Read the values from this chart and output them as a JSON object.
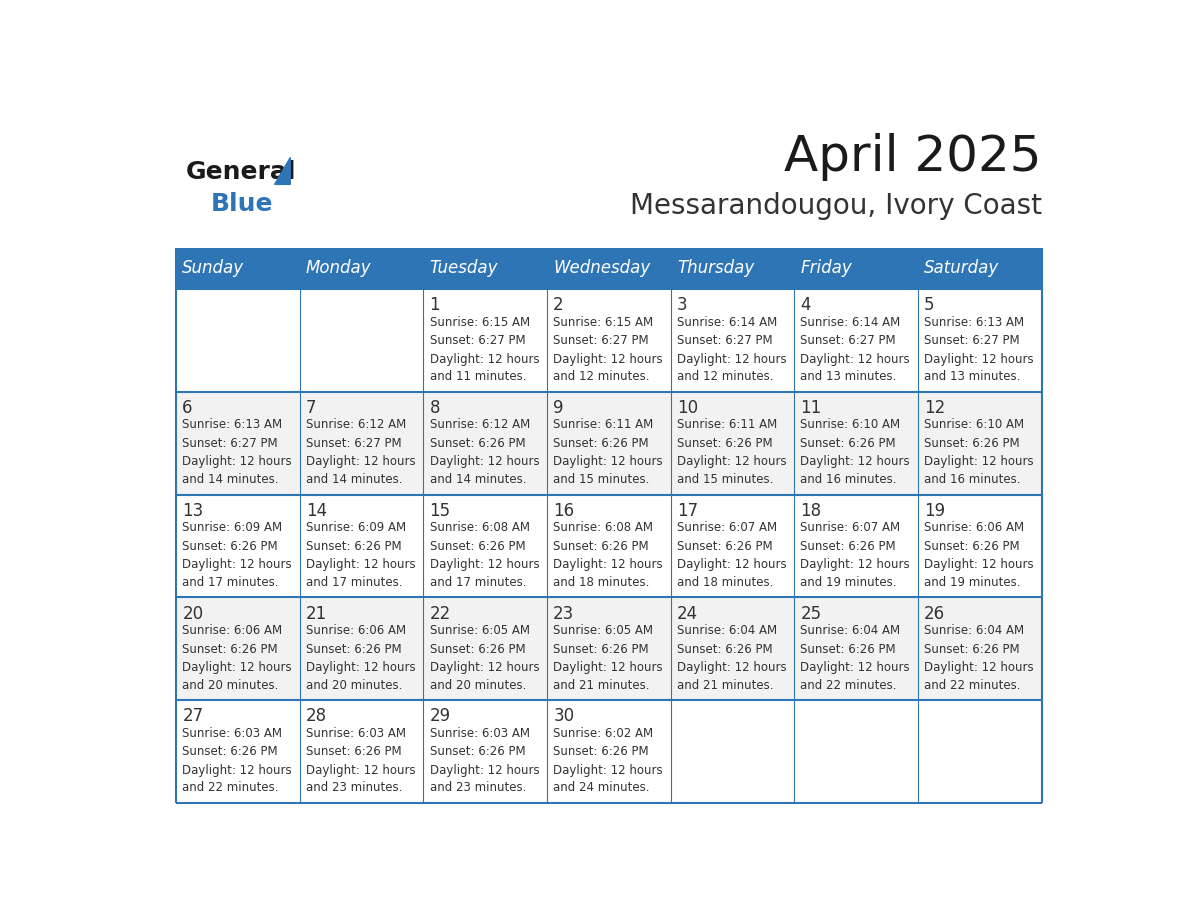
{
  "title": "April 2025",
  "subtitle": "Messarandougou, Ivory Coast",
  "header_bg_color": "#2E75B6",
  "header_text_color": "#FFFFFF",
  "row_bg_color_light": "#FFFFFF",
  "row_bg_color_alt": "#F2F2F2",
  "border_color": "#2E75B6",
  "text_color": "#333333",
  "days_of_week": [
    "Sunday",
    "Monday",
    "Tuesday",
    "Wednesday",
    "Thursday",
    "Friday",
    "Saturday"
  ],
  "calendar_data": [
    [
      {
        "day": "",
        "sunrise": "",
        "sunset": "",
        "daylight": ""
      },
      {
        "day": "",
        "sunrise": "",
        "sunset": "",
        "daylight": ""
      },
      {
        "day": "1",
        "sunrise": "6:15 AM",
        "sunset": "6:27 PM",
        "daylight": "12 hours\nand 11 minutes."
      },
      {
        "day": "2",
        "sunrise": "6:15 AM",
        "sunset": "6:27 PM",
        "daylight": "12 hours\nand 12 minutes."
      },
      {
        "day": "3",
        "sunrise": "6:14 AM",
        "sunset": "6:27 PM",
        "daylight": "12 hours\nand 12 minutes."
      },
      {
        "day": "4",
        "sunrise": "6:14 AM",
        "sunset": "6:27 PM",
        "daylight": "12 hours\nand 13 minutes."
      },
      {
        "day": "5",
        "sunrise": "6:13 AM",
        "sunset": "6:27 PM",
        "daylight": "12 hours\nand 13 minutes."
      }
    ],
    [
      {
        "day": "6",
        "sunrise": "6:13 AM",
        "sunset": "6:27 PM",
        "daylight": "12 hours\nand 14 minutes."
      },
      {
        "day": "7",
        "sunrise": "6:12 AM",
        "sunset": "6:27 PM",
        "daylight": "12 hours\nand 14 minutes."
      },
      {
        "day": "8",
        "sunrise": "6:12 AM",
        "sunset": "6:26 PM",
        "daylight": "12 hours\nand 14 minutes."
      },
      {
        "day": "9",
        "sunrise": "6:11 AM",
        "sunset": "6:26 PM",
        "daylight": "12 hours\nand 15 minutes."
      },
      {
        "day": "10",
        "sunrise": "6:11 AM",
        "sunset": "6:26 PM",
        "daylight": "12 hours\nand 15 minutes."
      },
      {
        "day": "11",
        "sunrise": "6:10 AM",
        "sunset": "6:26 PM",
        "daylight": "12 hours\nand 16 minutes."
      },
      {
        "day": "12",
        "sunrise": "6:10 AM",
        "sunset": "6:26 PM",
        "daylight": "12 hours\nand 16 minutes."
      }
    ],
    [
      {
        "day": "13",
        "sunrise": "6:09 AM",
        "sunset": "6:26 PM",
        "daylight": "12 hours\nand 17 minutes."
      },
      {
        "day": "14",
        "sunrise": "6:09 AM",
        "sunset": "6:26 PM",
        "daylight": "12 hours\nand 17 minutes."
      },
      {
        "day": "15",
        "sunrise": "6:08 AM",
        "sunset": "6:26 PM",
        "daylight": "12 hours\nand 17 minutes."
      },
      {
        "day": "16",
        "sunrise": "6:08 AM",
        "sunset": "6:26 PM",
        "daylight": "12 hours\nand 18 minutes."
      },
      {
        "day": "17",
        "sunrise": "6:07 AM",
        "sunset": "6:26 PM",
        "daylight": "12 hours\nand 18 minutes."
      },
      {
        "day": "18",
        "sunrise": "6:07 AM",
        "sunset": "6:26 PM",
        "daylight": "12 hours\nand 19 minutes."
      },
      {
        "day": "19",
        "sunrise": "6:06 AM",
        "sunset": "6:26 PM",
        "daylight": "12 hours\nand 19 minutes."
      }
    ],
    [
      {
        "day": "20",
        "sunrise": "6:06 AM",
        "sunset": "6:26 PM",
        "daylight": "12 hours\nand 20 minutes."
      },
      {
        "day": "21",
        "sunrise": "6:06 AM",
        "sunset": "6:26 PM",
        "daylight": "12 hours\nand 20 minutes."
      },
      {
        "day": "22",
        "sunrise": "6:05 AM",
        "sunset": "6:26 PM",
        "daylight": "12 hours\nand 20 minutes."
      },
      {
        "day": "23",
        "sunrise": "6:05 AM",
        "sunset": "6:26 PM",
        "daylight": "12 hours\nand 21 minutes."
      },
      {
        "day": "24",
        "sunrise": "6:04 AM",
        "sunset": "6:26 PM",
        "daylight": "12 hours\nand 21 minutes."
      },
      {
        "day": "25",
        "sunrise": "6:04 AM",
        "sunset": "6:26 PM",
        "daylight": "12 hours\nand 22 minutes."
      },
      {
        "day": "26",
        "sunrise": "6:04 AM",
        "sunset": "6:26 PM",
        "daylight": "12 hours\nand 22 minutes."
      }
    ],
    [
      {
        "day": "27",
        "sunrise": "6:03 AM",
        "sunset": "6:26 PM",
        "daylight": "12 hours\nand 22 minutes."
      },
      {
        "day": "28",
        "sunrise": "6:03 AM",
        "sunset": "6:26 PM",
        "daylight": "12 hours\nand 23 minutes."
      },
      {
        "day": "29",
        "sunrise": "6:03 AM",
        "sunset": "6:26 PM",
        "daylight": "12 hours\nand 23 minutes."
      },
      {
        "day": "30",
        "sunrise": "6:02 AM",
        "sunset": "6:26 PM",
        "daylight": "12 hours\nand 24 minutes."
      },
      {
        "day": "",
        "sunrise": "",
        "sunset": "",
        "daylight": ""
      },
      {
        "day": "",
        "sunrise": "",
        "sunset": "",
        "daylight": ""
      },
      {
        "day": "",
        "sunrise": "",
        "sunset": "",
        "daylight": ""
      }
    ]
  ],
  "logo_text_general": "General",
  "logo_text_blue": "Blue",
  "logo_triangle_color": "#2E75B6",
  "title_fontsize": 36,
  "subtitle_fontsize": 20,
  "day_header_fontsize": 12,
  "day_number_fontsize": 12,
  "cell_text_fontsize": 8.5
}
